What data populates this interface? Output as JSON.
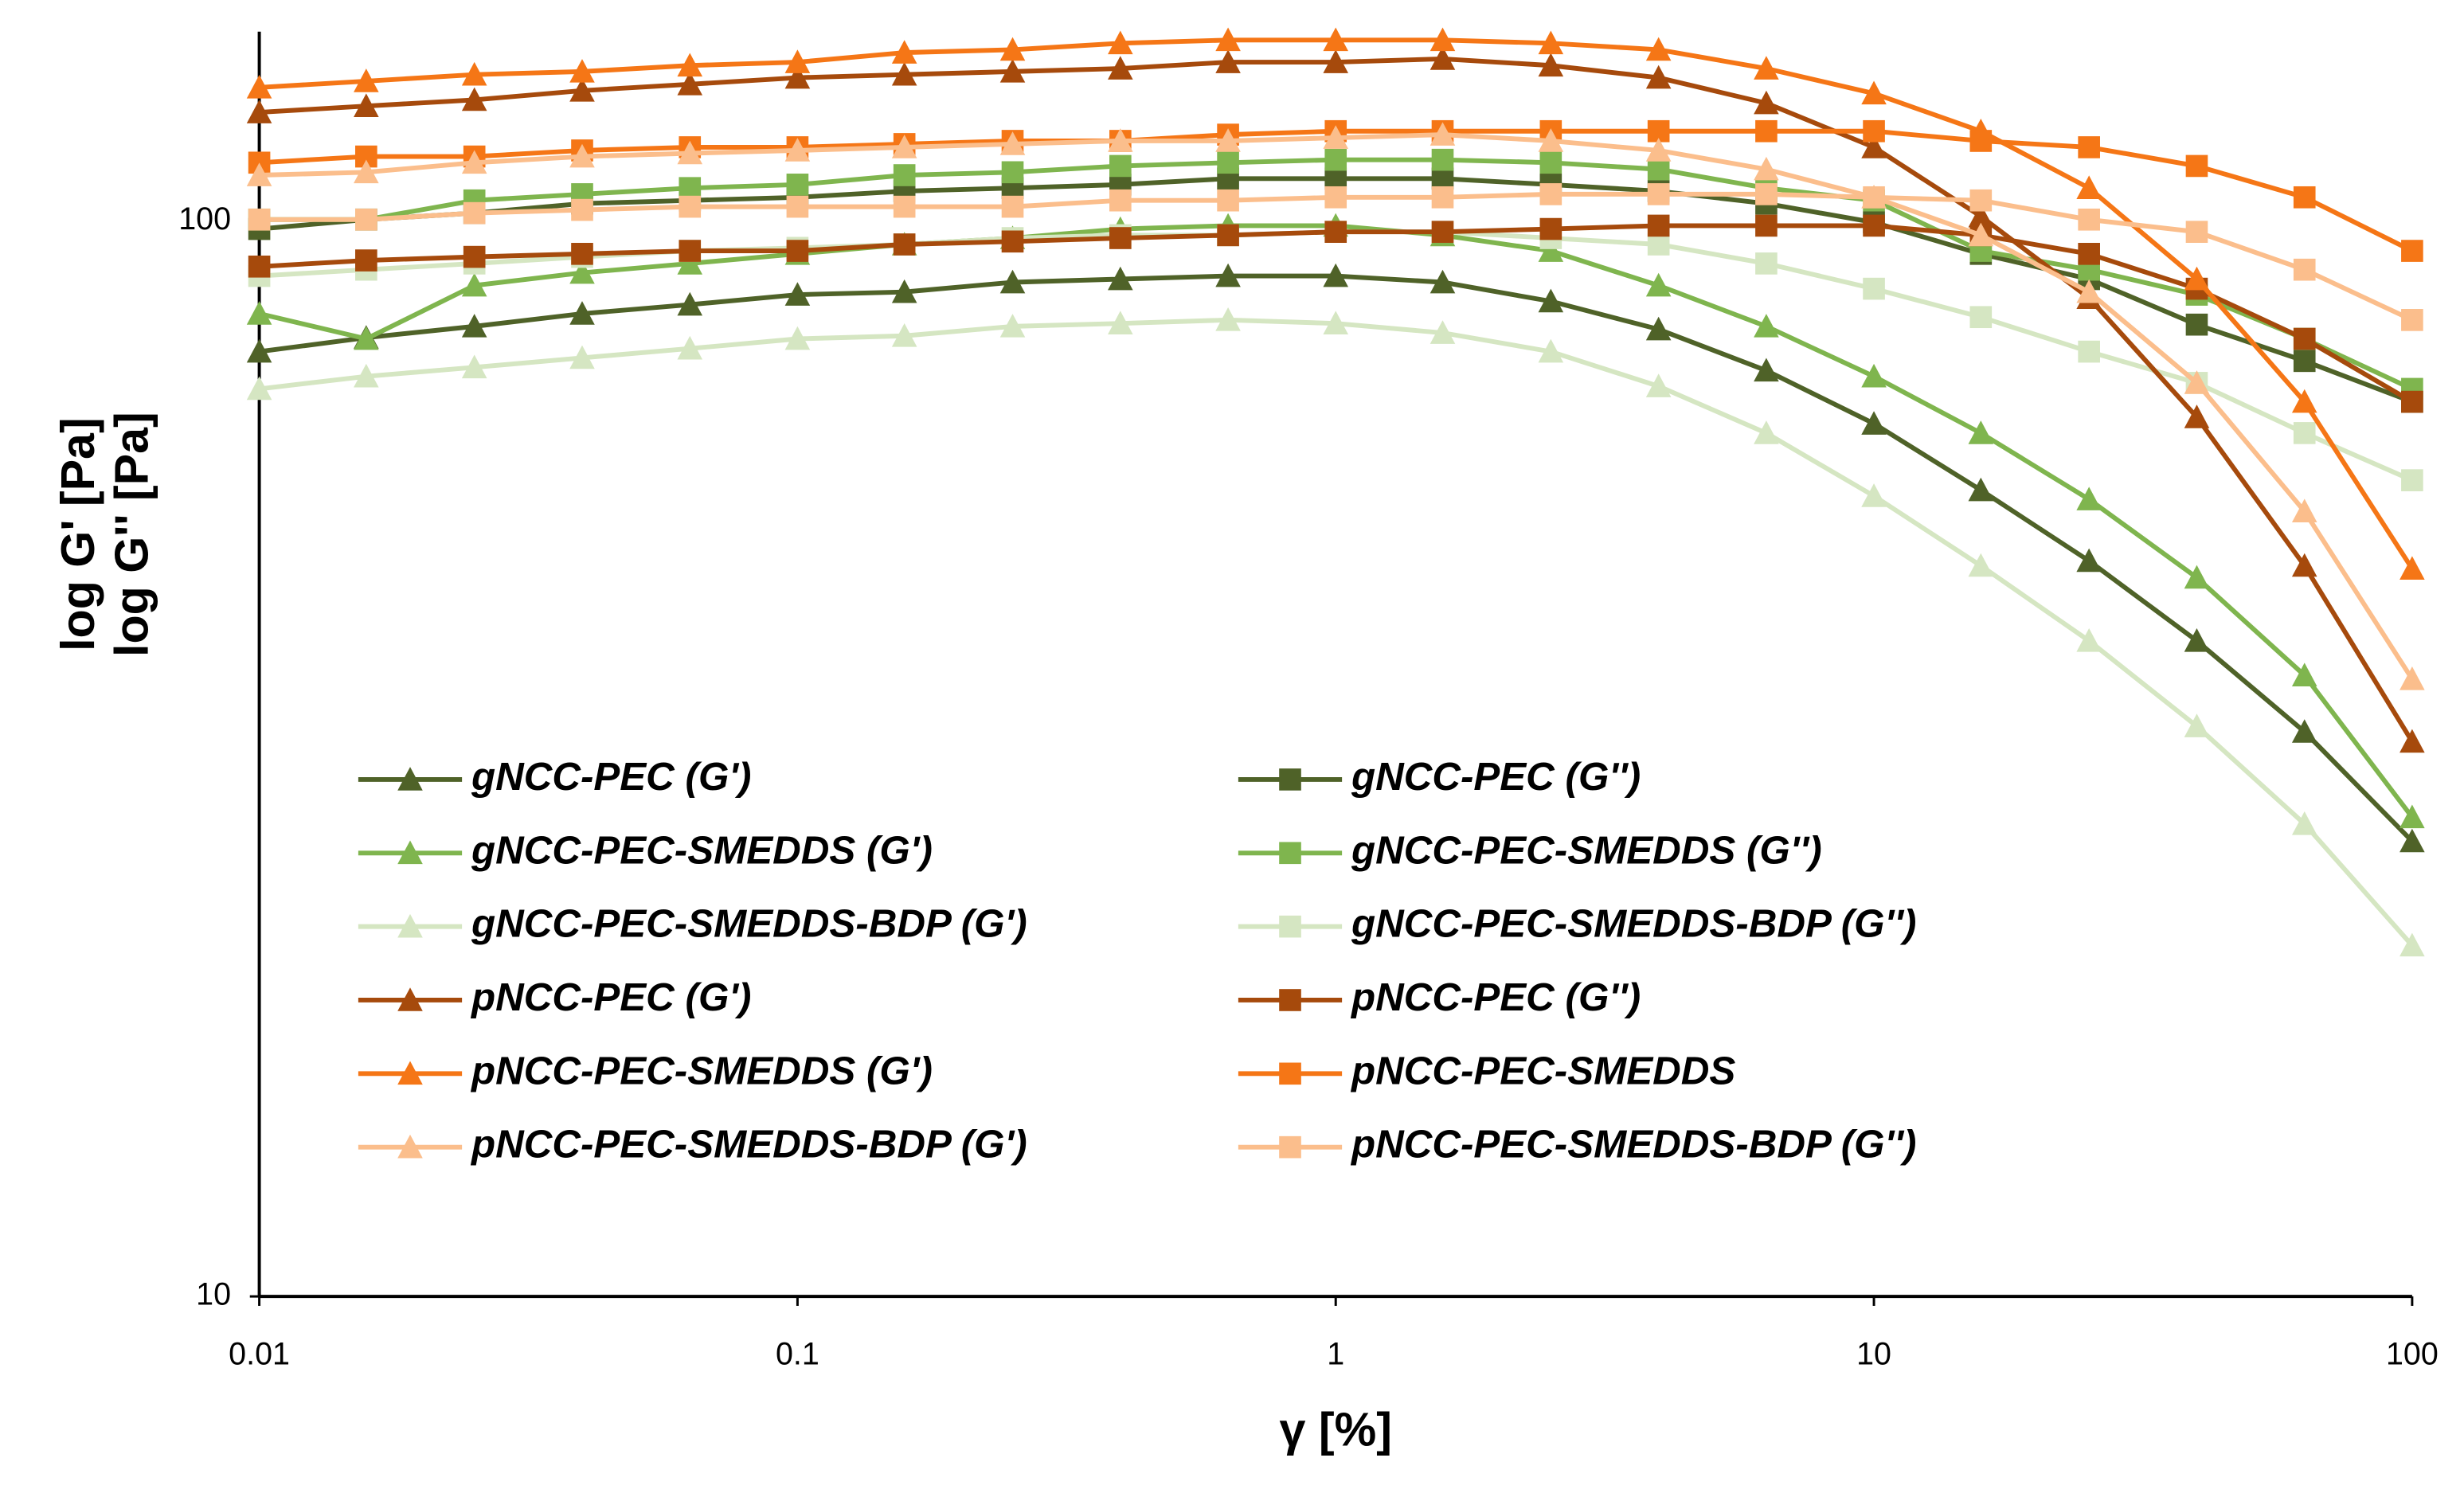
{
  "chart_data": {
    "type": "line",
    "xlabel": "γ [%]",
    "ylabel": [
      "log G' [Pa]",
      "log G'' [Pa]"
    ],
    "xscale": "log",
    "yscale": "log",
    "xlim": [
      0.01,
      100
    ],
    "ylim": [
      10,
      150
    ],
    "xticks": [
      0.01,
      0.1,
      1,
      10,
      100
    ],
    "yticks": [
      10,
      100
    ],
    "grid": false,
    "legend": "bottom-left",
    "x": [
      0.01,
      0.0158,
      0.0251,
      0.0398,
      0.0631,
      0.1,
      0.158,
      0.251,
      0.398,
      0.631,
      1,
      1.58,
      2.51,
      3.98,
      6.31,
      10,
      15.8,
      25.1,
      39.8,
      63.1,
      100
    ],
    "series": [
      {
        "name": "gNCC-PEC (G')",
        "color": "#4f6228",
        "marker": "triangle",
        "values": [
          75.6,
          77.9,
          79.8,
          82.0,
          83.6,
          85.4,
          85.9,
          87.7,
          88.3,
          88.9,
          88.9,
          87.7,
          84.2,
          79.3,
          72.6,
          64.8,
          56.2,
          48.3,
          40.7,
          33.5,
          26.5
        ]
      },
      {
        "name": "gNCC-PEC (G'')",
        "color": "#4f6228",
        "marker": "square",
        "values": [
          98.3,
          100.3,
          101.7,
          103.8,
          104.5,
          105.2,
          106.6,
          107.3,
          108.1,
          109.5,
          109.5,
          109.5,
          108.1,
          106.6,
          103.8,
          99.7,
          93.2,
          88.3,
          80.1,
          74.1,
          67.9
        ]
      },
      {
        "name": "gNCC-PEC-SMEDDS (G')",
        "color": "#7fb54e",
        "marker": "triangle",
        "values": [
          82.0,
          77.7,
          87.1,
          89.5,
          91.3,
          93.2,
          95.1,
          96.4,
          98.3,
          99.0,
          99.0,
          97.0,
          93.8,
          87.1,
          79.8,
          71.7,
          63.5,
          55.1,
          46.6,
          37.8,
          27.9
        ]
      },
      {
        "name": "gNCC-PEC-SMEDDS (G'')",
        "color": "#7fb54e",
        "marker": "square",
        "values": [
          100.3,
          100.3,
          104.5,
          105.9,
          107.3,
          108.1,
          110.3,
          111.0,
          112.5,
          113.3,
          114.0,
          114.0,
          113.3,
          111.7,
          107.3,
          104.5,
          93.8,
          90.1,
          85.4,
          77.7,
          69.8
        ]
      },
      {
        "name": "gNCC-PEC-SMEDDS-BDP (G')",
        "color": "#d5e6c2",
        "marker": "triangle",
        "values": [
          69.8,
          71.7,
          73.1,
          74.6,
          76.1,
          77.7,
          78.2,
          79.8,
          80.3,
          80.9,
          80.3,
          78.7,
          75.6,
          70.2,
          63.5,
          55.5,
          47.8,
          40.7,
          33.9,
          27.5,
          21.2
        ]
      },
      {
        "name": "gNCC-PEC-SMEDDS-BDP (G'')",
        "color": "#d5e6c2",
        "marker": "square",
        "values": [
          88.9,
          90.1,
          91.3,
          92.6,
          93.8,
          94.4,
          95.1,
          96.4,
          97.0,
          97.0,
          97.7,
          97.7,
          96.4,
          95.1,
          91.3,
          86.5,
          81.4,
          75.6,
          70.7,
          63.5,
          57.4
        ]
      },
      {
        "name": "pNCC-PEC (G')",
        "color": "#a64a0c",
        "marker": "triangle",
        "values": [
          126.2,
          127.9,
          129.6,
          132.2,
          134.0,
          135.9,
          136.8,
          137.7,
          138.6,
          140.5,
          140.5,
          141.5,
          139.5,
          135.9,
          128.7,
          117.1,
          101.0,
          84.8,
          65.7,
          47.8,
          32.8
        ]
      },
      {
        "name": "pNCC-PEC (G'')",
        "color": "#a64a0c",
        "marker": "square",
        "values": [
          90.7,
          91.9,
          92.6,
          93.2,
          93.8,
          93.8,
          95.1,
          95.7,
          96.4,
          97.0,
          97.7,
          97.7,
          98.3,
          99.0,
          99.0,
          99.0,
          97.0,
          93.2,
          86.5,
          77.7,
          67.9
        ]
      },
      {
        "name": "pNCC-PEC-SMEDDS (G')",
        "color": "#f57616",
        "marker": "triangle",
        "values": [
          133.1,
          134.9,
          136.8,
          137.7,
          139.5,
          140.5,
          143.4,
          144.3,
          146.3,
          147.3,
          147.3,
          147.3,
          146.3,
          144.3,
          138.6,
          131.4,
          121.2,
          107.3,
          88.3,
          67.9,
          47.5
        ]
      },
      {
        "name": "pNCC-PEC-SMEDDS",
        "color": "#f57616",
        "marker": "square",
        "values": [
          113.3,
          114.8,
          114.8,
          116.3,
          117.1,
          117.1,
          117.9,
          118.7,
          118.7,
          120.3,
          121.2,
          121.2,
          121.2,
          121.2,
          121.2,
          121.2,
          118.7,
          117.1,
          112.5,
          105.2,
          93.8
        ]
      },
      {
        "name": "pNCC-PEC-SMEDDS-BDP (G')",
        "color": "#fbbe8c",
        "marker": "triangle",
        "values": [
          110.3,
          111.0,
          113.3,
          114.8,
          115.6,
          116.3,
          117.1,
          117.9,
          118.7,
          118.7,
          119.5,
          120.3,
          118.7,
          116.3,
          111.7,
          105.2,
          97.0,
          85.9,
          70.7,
          53.7,
          37.5
        ]
      },
      {
        "name": "pNCC-PEC-SMEDDS-BDP (G'')",
        "color": "#fbbe8c",
        "marker": "square",
        "values": [
          100.3,
          100.3,
          101.7,
          102.4,
          103.1,
          103.1,
          103.1,
          103.1,
          104.5,
          104.5,
          105.2,
          105.2,
          105.9,
          105.9,
          105.9,
          105.2,
          104.5,
          100.3,
          97.7,
          90.1,
          80.9
        ]
      }
    ]
  }
}
